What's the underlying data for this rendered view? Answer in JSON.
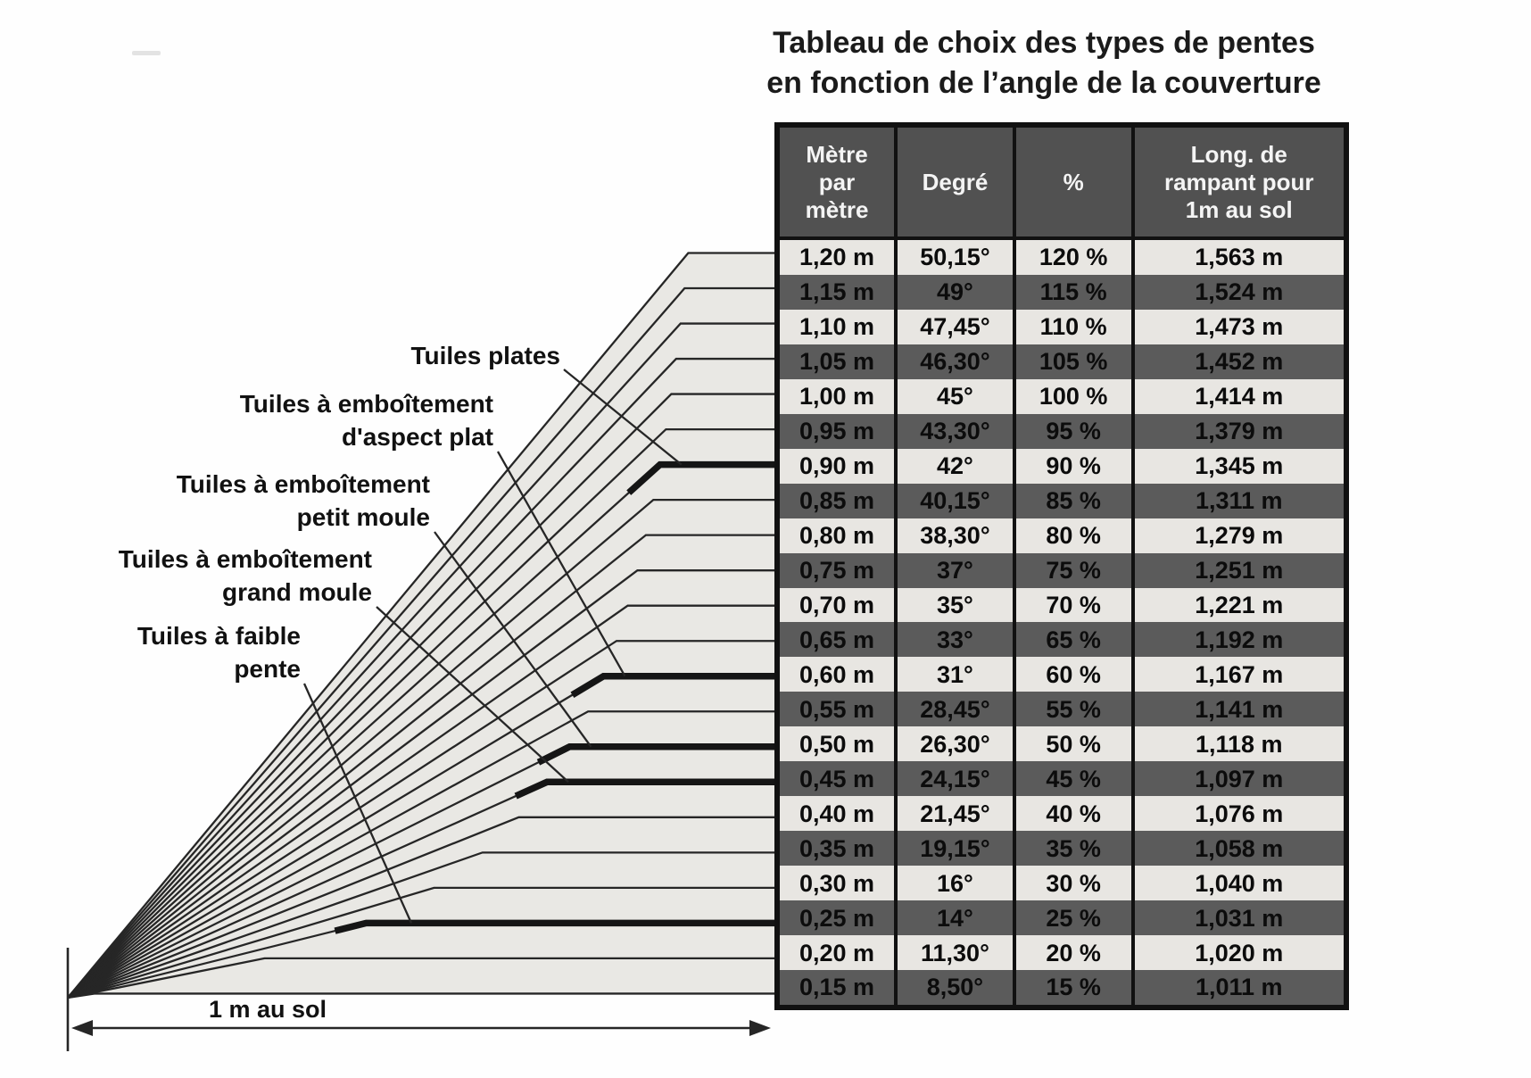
{
  "title": {
    "line1": "Tableau de choix des types de pentes",
    "line2": "en fonction de l’angle de la couverture"
  },
  "table": {
    "headers": [
      {
        "lines": [
          "Mètre",
          "par",
          "mètre"
        ]
      },
      {
        "lines": [
          "Degré"
        ]
      },
      {
        "lines": [
          "%"
        ]
      },
      {
        "lines": [
          "Long. de",
          "rampant pour",
          "1m au sol"
        ]
      }
    ],
    "rows": [
      {
        "metre": "1,20 m",
        "degre": "50,15°",
        "pct": "120 %",
        "rampant": "1,563 m"
      },
      {
        "metre": "1,15 m",
        "degre": "49°",
        "pct": "115 %",
        "rampant": "1,524 m"
      },
      {
        "metre": "1,10 m",
        "degre": "47,45°",
        "pct": "110 %",
        "rampant": "1,473 m"
      },
      {
        "metre": "1,05 m",
        "degre": "46,30°",
        "pct": "105 %",
        "rampant": "1,452 m"
      },
      {
        "metre": "1,00 m",
        "degre": "45°",
        "pct": "100 %",
        "rampant": "1,414 m"
      },
      {
        "metre": "0,95 m",
        "degre": "43,30°",
        "pct": "95 %",
        "rampant": "1,379 m"
      },
      {
        "metre": "0,90 m",
        "degre": "42°",
        "pct": "90 %",
        "rampant": "1,345 m"
      },
      {
        "metre": "0,85 m",
        "degre": "40,15°",
        "pct": "85 %",
        "rampant": "1,311 m"
      },
      {
        "metre": "0,80 m",
        "degre": "38,30°",
        "pct": "80 %",
        "rampant": "1,279 m"
      },
      {
        "metre": "0,75 m",
        "degre": "37°",
        "pct": "75 %",
        "rampant": "1,251 m"
      },
      {
        "metre": "0,70 m",
        "degre": "35°",
        "pct": "70 %",
        "rampant": "1,221 m"
      },
      {
        "metre": "0,65 m",
        "degre": "33°",
        "pct": "65 %",
        "rampant": "1,192 m"
      },
      {
        "metre": "0,60 m",
        "degre": "31°",
        "pct": "60 %",
        "rampant": "1,167 m"
      },
      {
        "metre": "0,55 m",
        "degre": "28,45°",
        "pct": "55 %",
        "rampant": "1,141 m"
      },
      {
        "metre": "0,50 m",
        "degre": "26,30°",
        "pct": "50 %",
        "rampant": "1,118 m"
      },
      {
        "metre": "0,45 m",
        "degre": "24,15°",
        "pct": "45 %",
        "rampant": "1,097 m"
      },
      {
        "metre": "0,40 m",
        "degre": "21,45°",
        "pct": "40 %",
        "rampant": "1,076 m"
      },
      {
        "metre": "0,35 m",
        "degre": "19,15°",
        "pct": "35 %",
        "rampant": "1,058 m"
      },
      {
        "metre": "0,30 m",
        "degre": "16°",
        "pct": "30 %",
        "rampant": "1,040 m"
      },
      {
        "metre": "0,25 m",
        "degre": "14°",
        "pct": "25 %",
        "rampant": "1,031 m"
      },
      {
        "metre": "0,20 m",
        "degre": "11,30°",
        "pct": "20 %",
        "rampant": "1,020 m"
      },
      {
        "metre": "0,15 m",
        "degre": "8,50°",
        "pct": "15 %",
        "rampant": "1,011 m"
      }
    ]
  },
  "diagram": {
    "ground_label": "1 m au sol",
    "labels": [
      {
        "lines": [
          "Tuiles plates"
        ],
        "target_row": 6
      },
      {
        "lines": [
          "Tuiles à emboîtement",
          "d'aspect plat"
        ],
        "target_row": 12
      },
      {
        "lines": [
          "Tuiles à emboîtement",
          "petit moule"
        ],
        "target_row": 14
      },
      {
        "lines": [
          "Tuiles à emboîtement",
          "grand moule"
        ],
        "target_row": 15
      },
      {
        "lines": [
          "Tuiles à faible",
          "pente"
        ],
        "target_row": 19
      }
    ]
  },
  "colors": {
    "header_bg": "#515151",
    "dark_row_bg": "#5b5b5b",
    "light_row_bg": "#e8e6e2",
    "wedge": "#e9e8e4",
    "line": "#262626",
    "text": "#0c0c0c",
    "header_text": "#f4f4f4"
  }
}
